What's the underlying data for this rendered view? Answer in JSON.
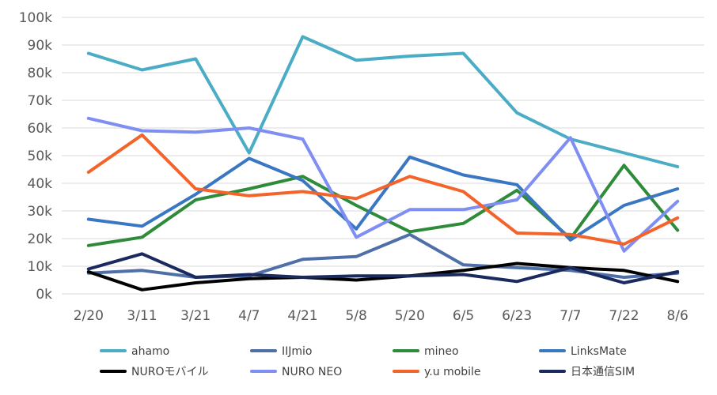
{
  "chart_data": {
    "type": "line",
    "title": "",
    "xlabel": "",
    "ylabel": "",
    "categories": [
      "2/20",
      "3/11",
      "3/21",
      "4/7",
      "4/21",
      "5/8",
      "5/20",
      "6/5",
      "6/23",
      "7/7",
      "7/22",
      "8/6"
    ],
    "ylim": [
      0,
      100000
    ],
    "y_ticks": [
      0,
      10000,
      20000,
      30000,
      40000,
      50000,
      60000,
      70000,
      80000,
      90000,
      100000
    ],
    "y_tick_labels": [
      "0k",
      "10k",
      "20k",
      "30k",
      "40k",
      "50k",
      "60k",
      "70k",
      "80k",
      "90k",
      "100k"
    ],
    "grid": true,
    "legend_position": "bottom",
    "series": [
      {
        "name": "ahamo",
        "color": "#4bacc6",
        "values": [
          87000,
          81000,
          85000,
          51000,
          93000,
          84500,
          86000,
          87000,
          65500,
          56000,
          51000,
          46000
        ]
      },
      {
        "name": "IIJmio",
        "color": "#4f6fa9",
        "values": [
          7500,
          8500,
          6000,
          6500,
          12500,
          13500,
          21500,
          10500,
          9500,
          8500,
          6000,
          7500
        ]
      },
      {
        "name": "mineo",
        "color": "#2e8b3a",
        "values": [
          17500,
          20500,
          34000,
          38000,
          42500,
          32000,
          22500,
          25500,
          37500,
          20000,
          46500,
          23000
        ]
      },
      {
        "name": "LinksMate",
        "color": "#3a77c2",
        "values": [
          27000,
          24500,
          36000,
          49000,
          41000,
          23500,
          49500,
          43000,
          39500,
          19500,
          32000,
          38000
        ]
      },
      {
        "name": "NUROモバイル",
        "color": "#000000",
        "values": [
          8000,
          1500,
          4000,
          5500,
          6000,
          5000,
          6500,
          8500,
          11000,
          9500,
          8500,
          4500
        ]
      },
      {
        "name": "NURO NEO",
        "color": "#7f8ef2",
        "values": [
          63500,
          59000,
          58500,
          60000,
          56000,
          20500,
          30500,
          30500,
          34000,
          56500,
          15500,
          33500
        ]
      },
      {
        "name": "y.u mobile",
        "color": "#f4642a",
        "values": [
          44000,
          57500,
          38000,
          35500,
          37000,
          34500,
          42500,
          37000,
          22000,
          21500,
          18000,
          27500
        ]
      },
      {
        "name": "日本通信SIM",
        "color": "#1b2a5e",
        "values": [
          9000,
          14500,
          6000,
          7000,
          6000,
          6500,
          6500,
          7000,
          4500,
          9500,
          4000,
          8000
        ]
      }
    ]
  }
}
